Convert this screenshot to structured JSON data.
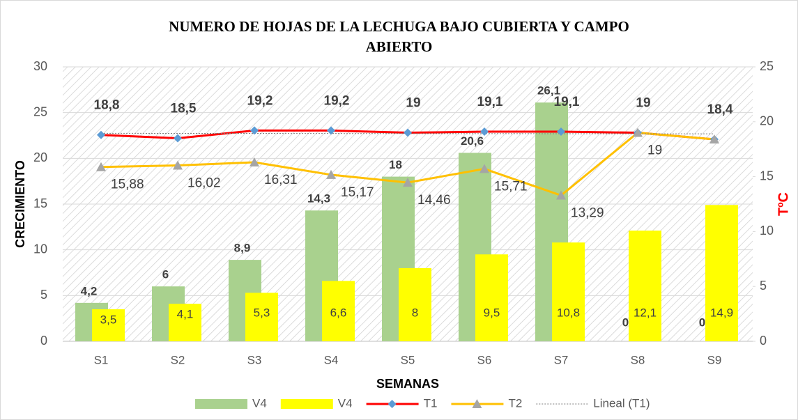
{
  "chart_data": {
    "type": "bar-line",
    "title": "NUMERO DE HOJAS DE  LA LECHUGA BAJO CUBIERTA Y CAMPO ABIERTO",
    "x_label": "SEMANAS",
    "y_label": "CRECIMIENTO",
    "y2_label": "TºC",
    "categories": [
      "S1",
      "S2",
      "S3",
      "S4",
      "S5",
      "S6",
      "S7",
      "S8",
      "S9"
    ],
    "ylim": [
      0,
      30
    ],
    "yticks": [
      0,
      5,
      10,
      15,
      20,
      25,
      30
    ],
    "y2lim": [
      0,
      25
    ],
    "y2ticks": [
      0,
      5,
      10,
      15,
      20,
      25
    ],
    "grid": true,
    "legend": "bottom",
    "series": [
      {
        "name": "V4",
        "type": "bar",
        "color": "#a9d18e",
        "values": [
          4.2,
          6,
          8.9,
          14.3,
          18,
          20.6,
          26.1,
          0,
          0
        ],
        "value_labels": [
          "4,2",
          "6",
          "8,9",
          "14,3",
          "18",
          "20,6",
          "26,1",
          "0",
          "0"
        ]
      },
      {
        "name": "V4",
        "type": "bar",
        "color": "#ffff00",
        "values": [
          3.5,
          4.1,
          5.3,
          6.6,
          8,
          9.5,
          10.8,
          12.1,
          14.9
        ],
        "value_labels": [
          "3,5",
          "4,1",
          "5,3",
          "6,6",
          "8",
          "9,5",
          "10,8",
          "12,1",
          "14,9"
        ]
      },
      {
        "name": "T1",
        "type": "line",
        "axis": "y2",
        "color": "#ff0000",
        "marker_color": "#5b9bd5",
        "values": [
          18.8,
          18.5,
          19.2,
          19.2,
          19,
          19.1,
          19.1,
          19,
          18.4
        ],
        "value_labels": [
          "18,8",
          "18,5",
          "19,2",
          "19,2",
          "19",
          "19,1",
          "19,1",
          "19",
          "18,4"
        ]
      },
      {
        "name": "T2",
        "type": "line",
        "axis": "y2",
        "color": "#ffc000",
        "marker_color": "#a5a5a5",
        "values": [
          15.88,
          16.02,
          16.31,
          15.17,
          14.46,
          15.71,
          13.29,
          19,
          18.4
        ],
        "value_labels": [
          "15,88",
          "16,02",
          "16,31",
          "15,17",
          "14,46",
          "15,71",
          "13,29",
          "19",
          null
        ]
      },
      {
        "name": "Lineal (T1)",
        "type": "trend",
        "axis": "y2",
        "color": "#7f7f7f",
        "values": [
          18.95,
          18.94,
          18.94,
          18.93,
          18.92,
          18.92,
          18.91,
          18.9,
          18.9
        ]
      }
    ]
  }
}
